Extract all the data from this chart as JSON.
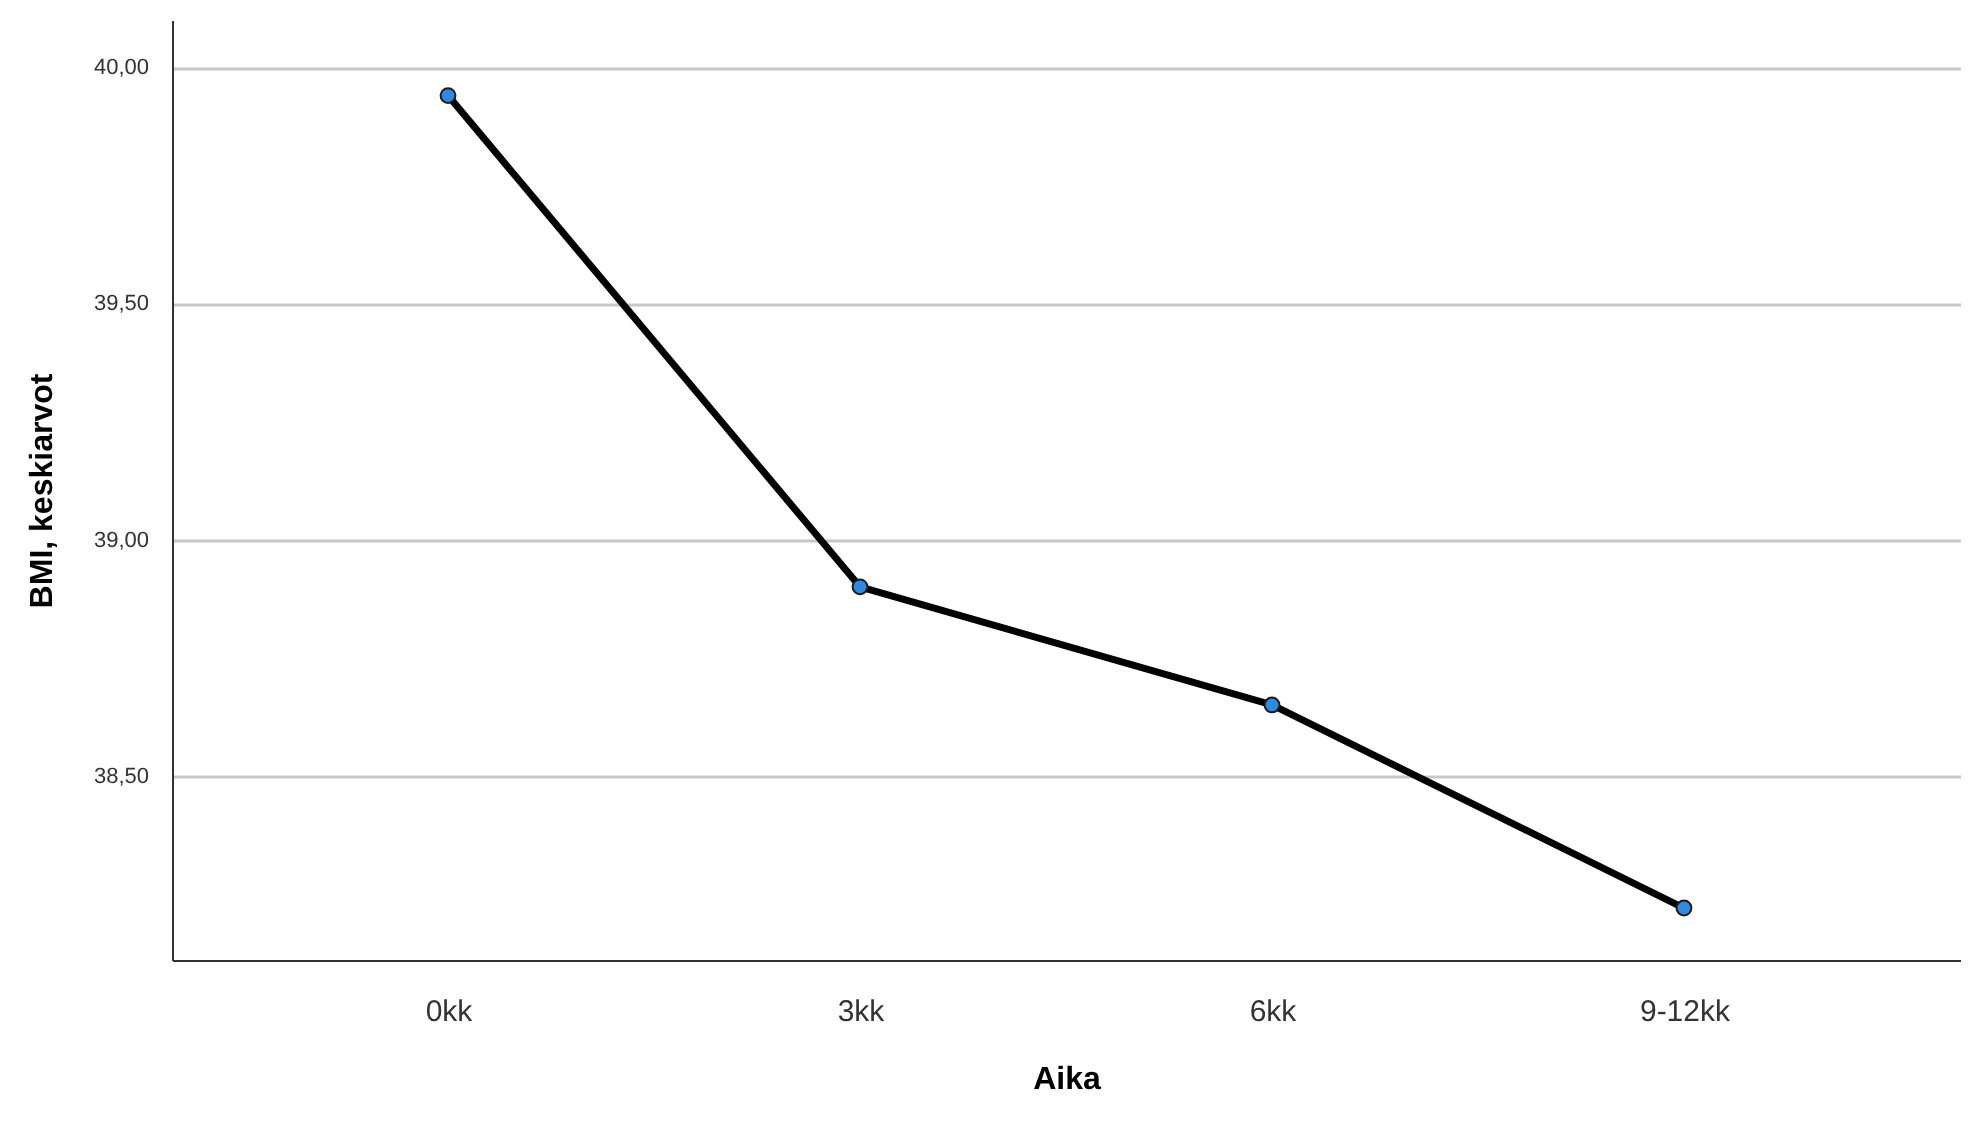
{
  "chart_data": {
    "type": "line",
    "xlabel": "Aika",
    "ylabel": "BMI, keskiarvot",
    "categories": [
      "0kk",
      "3kk",
      "6kk",
      "9-12kk"
    ],
    "series": [
      {
        "color": "#000000",
        "values": [
          39.94,
          38.9,
          38.65,
          38.22
        ]
      }
    ],
    "ylim": [
      38.11,
      40.1
    ],
    "yticks": [
      {
        "value": 38.5,
        "label": "38,50"
      },
      {
        "value": 39,
        "label": "39,00"
      },
      {
        "value": 39.5,
        "label": "39,50"
      },
      {
        "value": 40,
        "label": "40,00"
      }
    ],
    "grid": "y",
    "marker": "circle"
  }
}
